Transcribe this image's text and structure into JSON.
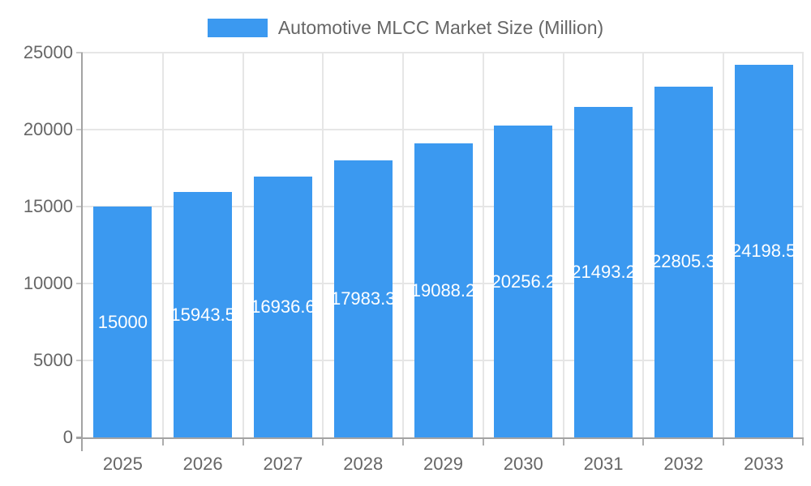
{
  "legend": {
    "label": "Automotive MLCC Market Size (Million)"
  },
  "chart_data": {
    "type": "bar",
    "title": "Automotive MLCC Market Size (Million)",
    "categories": [
      "2025",
      "2026",
      "2027",
      "2028",
      "2029",
      "2030",
      "2031",
      "2032",
      "2033"
    ],
    "values": [
      15000,
      15943.5,
      16936.6,
      17983.3,
      19088.2,
      20256.2,
      21493.2,
      22805.3,
      24198.5
    ],
    "value_labels": [
      "15000",
      "15943.5",
      "16936.6",
      "17983.3",
      "19088.2",
      "20256.2",
      "21493.2",
      "22805.3",
      "24198.5"
    ],
    "xlabel": "",
    "ylabel": "",
    "ylim": [
      0,
      25000
    ],
    "yticks": [
      0,
      5000,
      10000,
      15000,
      20000,
      25000
    ],
    "legend_position": "top",
    "grid": true,
    "value_label_position": "center-inside",
    "colors": {
      "bar": "#3B99F0",
      "bar_value_text": "#ffffff",
      "axis_line": "#a3a3a3",
      "grid_line": "#e6e6e6",
      "y_tick_mark": "#c9c9c9",
      "x_tick_mark": "#adadad",
      "tick_text": "#666666",
      "legend_text": "#666666",
      "background": "#ffffff"
    }
  }
}
